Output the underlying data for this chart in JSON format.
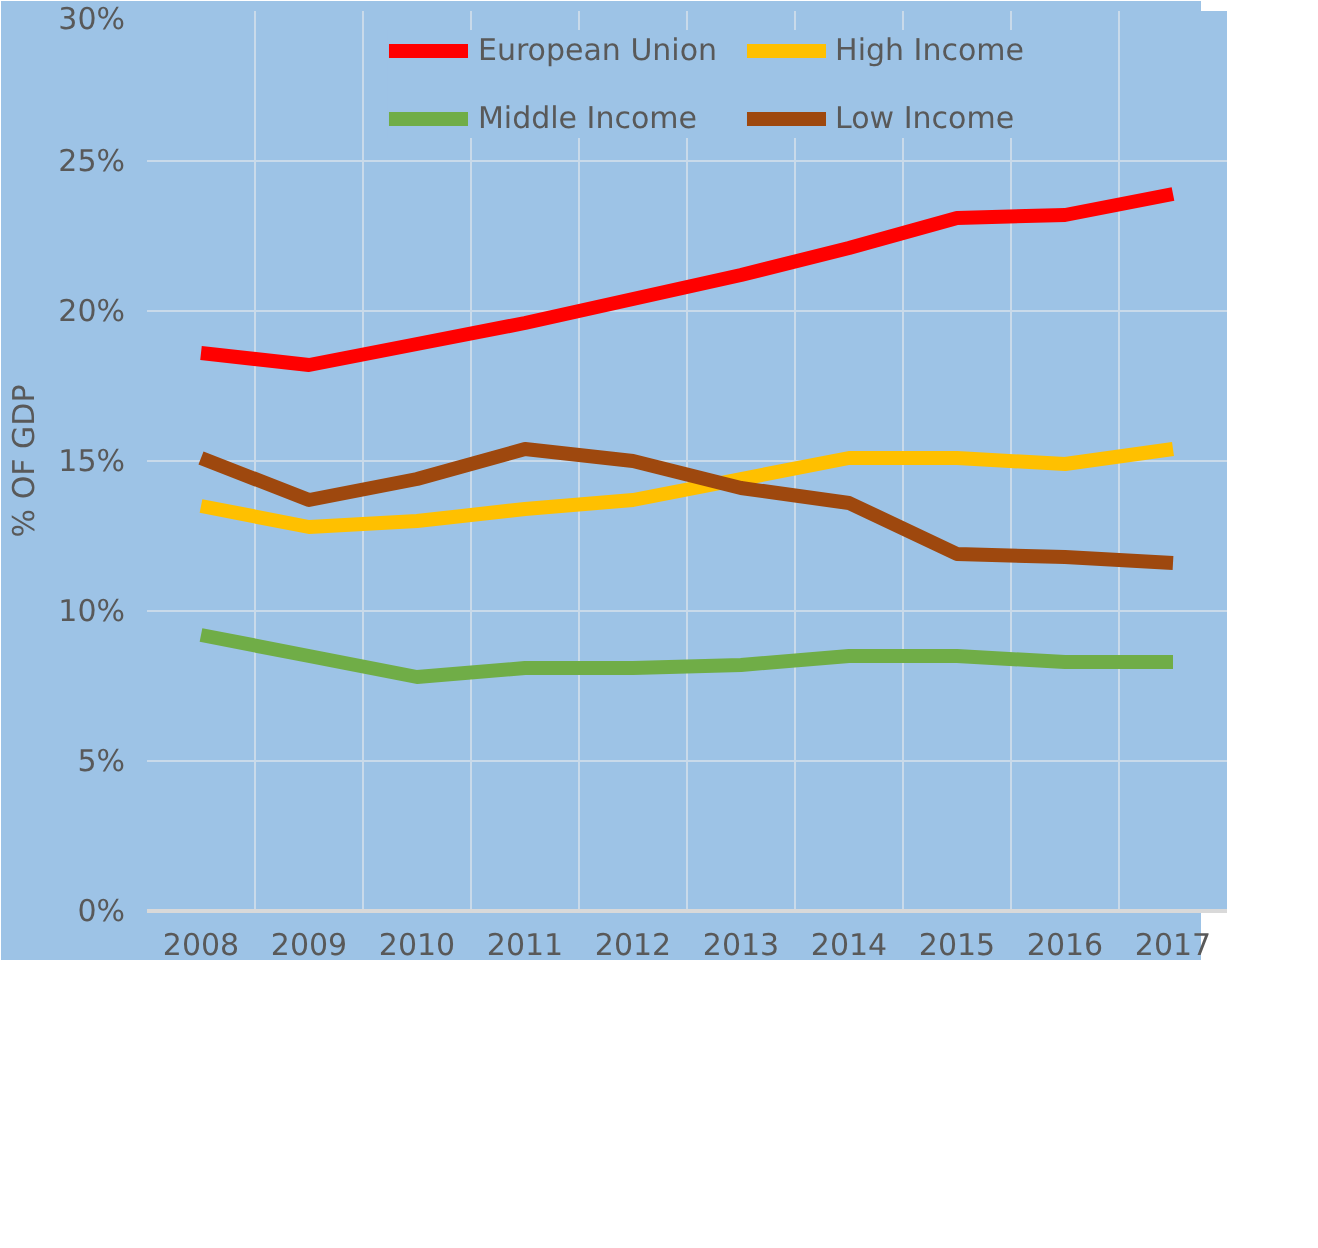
{
  "chart_data": {
    "type": "line",
    "ylabel": "% OF GDP",
    "categories": [
      "2008",
      "2009",
      "2010",
      "2011",
      "2012",
      "2013",
      "2014",
      "2015",
      "2016",
      "2017"
    ],
    "series": [
      {
        "name": "European Union",
        "color": "#ff0000",
        "values": [
          18.6,
          18.2,
          18.9,
          19.6,
          20.4,
          21.2,
          22.1,
          23.1,
          23.2,
          23.9
        ]
      },
      {
        "name": "High Income",
        "color": "#ffc000",
        "values": [
          13.5,
          12.8,
          13.0,
          13.4,
          13.7,
          14.4,
          15.1,
          15.1,
          14.9,
          15.4
        ]
      },
      {
        "name": "Middle Income",
        "color": "#70ad47",
        "values": [
          9.2,
          8.5,
          7.8,
          8.1,
          8.1,
          8.2,
          8.5,
          8.5,
          8.3,
          8.3
        ]
      },
      {
        "name": "Low Income",
        "color": "#9e480e",
        "values": [
          15.1,
          13.7,
          14.4,
          15.4,
          15.0,
          14.1,
          13.6,
          11.9,
          11.8,
          11.6
        ]
      }
    ],
    "ylim": [
      0,
      30
    ],
    "yticks": [
      {
        "value": 0,
        "label": "0%"
      },
      {
        "value": 5,
        "label": "5%"
      },
      {
        "value": 10,
        "label": "10%"
      },
      {
        "value": 15,
        "label": "15%"
      },
      {
        "value": 20,
        "label": "20%"
      },
      {
        "value": 25,
        "label": "25%"
      },
      {
        "value": 30,
        "label": "30%"
      }
    ],
    "grid": true,
    "legend": "top",
    "marker": "none",
    "line_style": "solid"
  }
}
